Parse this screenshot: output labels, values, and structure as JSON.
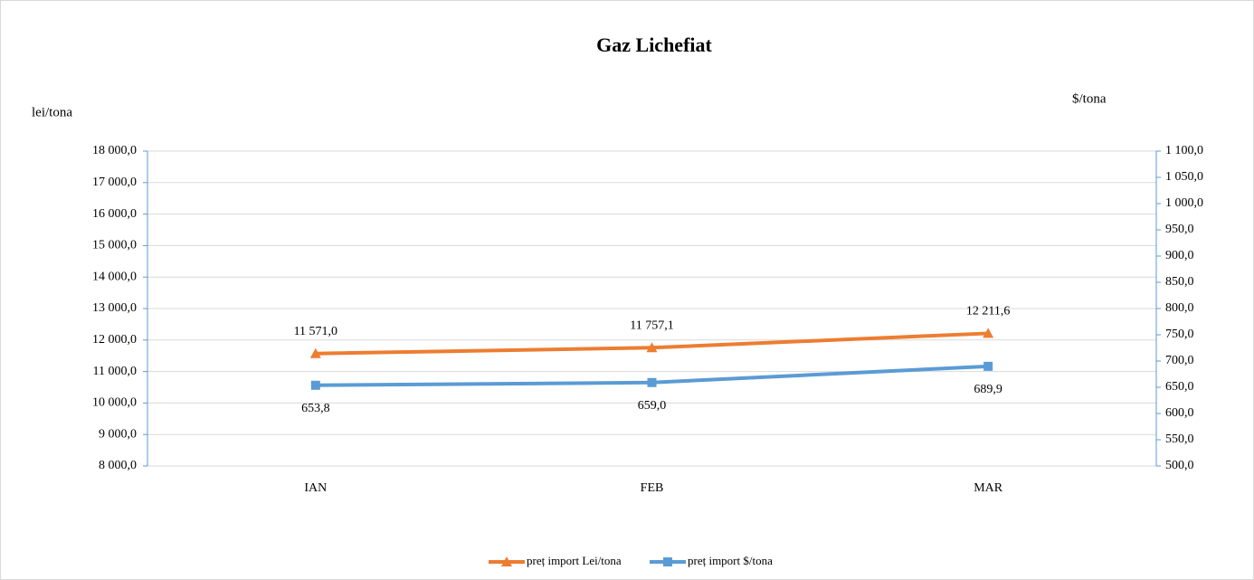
{
  "chart_data": {
    "type": "line",
    "title": "Gaz Lichefiat",
    "y_label": "lei/tona",
    "y2_label": "$/tona",
    "categories": [
      "IAN",
      "FEB",
      "MAR"
    ],
    "series": [
      {
        "name": "preț import Lei/tona",
        "color": "#ed7d31",
        "marker": "triangle",
        "values": [
          11571.0,
          11757.1,
          12211.6
        ],
        "value_labels": [
          "11 571,0",
          "11 757,1",
          "12 211,6"
        ]
      },
      {
        "name": "preț import $/tona",
        "color": "#5b9bd5",
        "marker": "square",
        "axis": "y2",
        "values": [
          653.8,
          659.0,
          689.9
        ],
        "value_labels": [
          "653,8",
          "659,0",
          "689,9"
        ]
      }
    ],
    "ylim": [
      8000,
      18000
    ],
    "yticks": [
      {
        "value": 8000,
        "label": "8 000,0"
      },
      {
        "value": 9000,
        "label": "9 000,0"
      },
      {
        "value": 10000,
        "label": "10 000,0"
      },
      {
        "value": 11000,
        "label": "11 000,0"
      },
      {
        "value": 12000,
        "label": "12 000,0"
      },
      {
        "value": 13000,
        "label": "13 000,0"
      },
      {
        "value": 14000,
        "label": "14 000,0"
      },
      {
        "value": 15000,
        "label": "15 000,0"
      },
      {
        "value": 16000,
        "label": "16 000,0"
      },
      {
        "value": 17000,
        "label": "17 000,0"
      },
      {
        "value": 18000,
        "label": "18 000,0"
      }
    ],
    "y2lim": [
      500,
      1100
    ],
    "y2ticks": [
      {
        "value": 500,
        "label": "500,0"
      },
      {
        "value": 550,
        "label": "550,0"
      },
      {
        "value": 600,
        "label": "600,0"
      },
      {
        "value": 650,
        "label": "650,0"
      },
      {
        "value": 700,
        "label": "700,0"
      },
      {
        "value": 750,
        "label": "750,0"
      },
      {
        "value": 800,
        "label": "800,0"
      },
      {
        "value": 850,
        "label": "850,0"
      },
      {
        "value": 900,
        "label": "900,0"
      },
      {
        "value": 950,
        "label": "950,0"
      },
      {
        "value": 1000,
        "label": "1 000,0"
      },
      {
        "value": 1050,
        "label": "1 050,0"
      },
      {
        "value": 1100,
        "label": "1 100,0"
      }
    ],
    "grid": true,
    "legend": "bottom"
  }
}
